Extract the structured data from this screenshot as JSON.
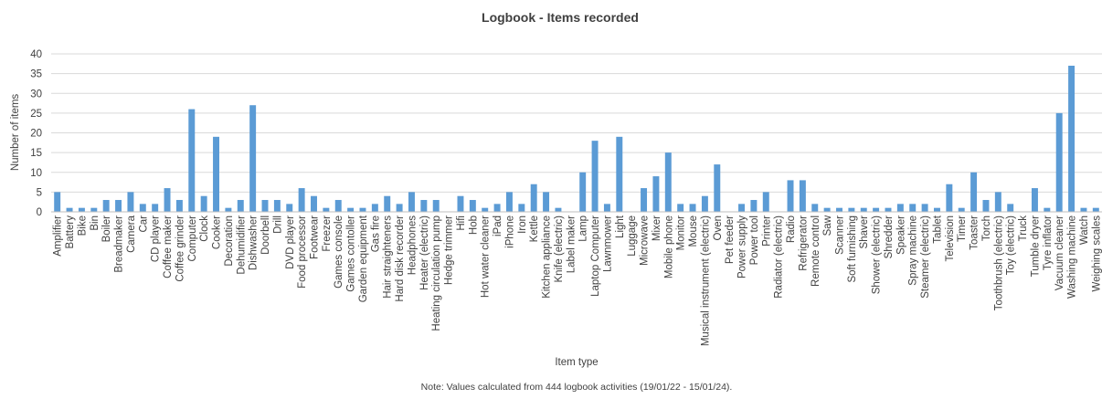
{
  "chart_data": {
    "type": "bar",
    "title": "Logbook - Items recorded",
    "xlabel": "Item type",
    "ylabel": "Number of items",
    "note": "Note: Values calculated from 444 logbook activities (19/01/22 - 15/01/24).",
    "ylim": [
      0,
      40
    ],
    "yticks": [
      0,
      5,
      10,
      15,
      20,
      25,
      30,
      35,
      40
    ],
    "grid": true,
    "bar_color": "#5b9bd5",
    "categories": [
      "Amplifier",
      "Battery",
      "Bike",
      "Bin",
      "Boiler",
      "Breadmaker",
      "Camera",
      "Car",
      "CD player",
      "Coffee maker",
      "Coffee grinder",
      "Computer",
      "Clock",
      "Cooker",
      "Decoration",
      "Dehumidifier",
      "Dishwasher",
      "Doorbell",
      "Drill",
      "DVD player",
      "Food processor",
      "Footwear",
      "Freezer",
      "Games console",
      "Games contoller",
      "Garden equipment",
      "Gas fire",
      "Hair straighteners",
      "Hard disk recorder",
      "Headphones",
      "Heater (electric)",
      "Heating circulation pump",
      "Hedge trimmer",
      "Hifi",
      "Hob",
      "Hot water cleaner",
      "iPad",
      "iPhone",
      "Iron",
      "Kettle",
      "Kitchen appliance",
      "Knife (electric)",
      "Label maker",
      "Lamp",
      "Laptop Computer",
      "Lawnmower",
      "Light",
      "Luggage",
      "Microwave",
      "Mixer",
      "Mobile phone",
      "Monitor",
      "Mouse",
      "Musical instrument (electric)",
      "Oven",
      "Pet feeder",
      "Power supply",
      "Power tool",
      "Printer",
      "Radiator (electric)",
      "Radio",
      "Refrigerator",
      "Remote control",
      "Saw",
      "Scanner",
      "Soft furnishing",
      "Shaver",
      "Shower (electric)",
      "Shredder",
      "Speaker",
      "Spray machine",
      "Steamer (electric)",
      "Tablet",
      "Television",
      "Timer",
      "Toaster",
      "Torch",
      "Toothbrush (electric)",
      "Toy (electric)",
      "Truck",
      "Tumble dryer",
      "Tyre inflator",
      "Vacuum cleaner",
      "Washing machine",
      "Watch",
      "Weighing scales"
    ],
    "values": [
      5,
      1,
      1,
      1,
      3,
      3,
      5,
      2,
      2,
      6,
      3,
      26,
      4,
      19,
      1,
      3,
      27,
      3,
      3,
      2,
      6,
      4,
      1,
      3,
      1,
      1,
      2,
      4,
      2,
      5,
      3,
      3,
      0,
      4,
      3,
      1,
      2,
      5,
      2,
      7,
      5,
      1,
      0,
      10,
      18,
      2,
      19,
      0,
      6,
      9,
      15,
      2,
      2,
      4,
      12,
      0,
      2,
      3,
      5,
      0,
      8,
      8,
      2,
      1,
      1,
      1,
      1,
      1,
      1,
      2,
      2,
      2,
      1,
      7,
      1,
      10,
      3,
      5,
      2,
      0,
      6,
      1,
      25,
      37,
      1,
      1
    ]
  }
}
